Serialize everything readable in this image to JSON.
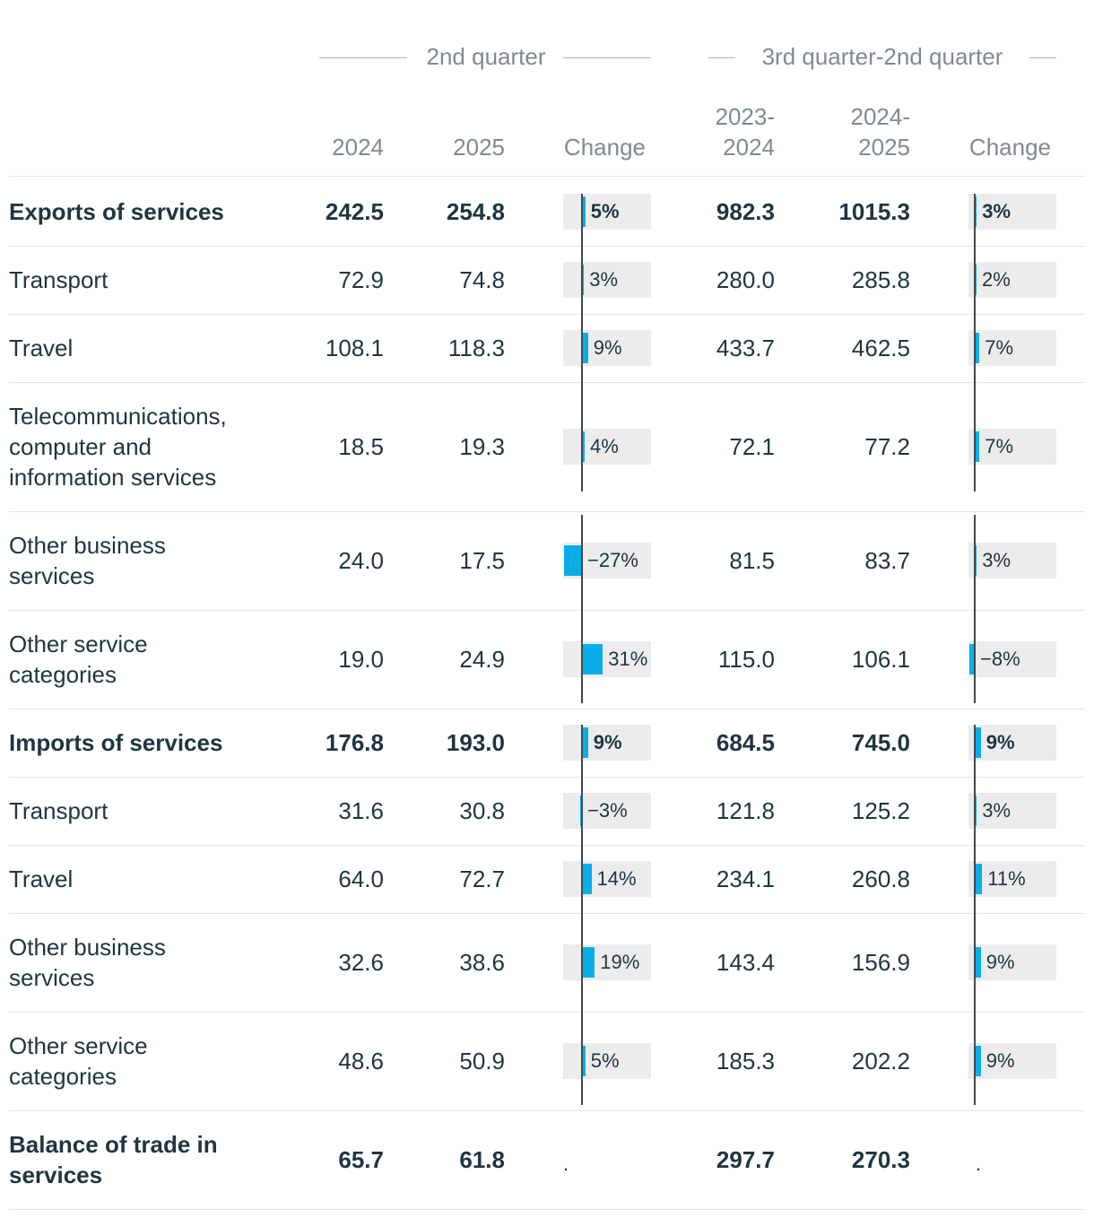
{
  "chart_data": {
    "type": "table",
    "groups": [
      "2nd quarter",
      "3rd quarter-2nd quarter"
    ],
    "columns": {
      "q2024": "2024",
      "q2025": "2025",
      "q_change": "Change",
      "p2324_line1": "2023-",
      "p2324_line2": "2024",
      "p2425_line1": "2024-",
      "p2425_line2": "2025",
      "p_change": "Change"
    },
    "rows": [
      {
        "label": "Exports of services",
        "bold": true,
        "q2024": "242.5",
        "q2025": "254.8",
        "q_change": 5,
        "q_change_text": "5%",
        "p2324": "982.3",
        "p2425": "1015.3",
        "p_change": 3,
        "p_change_text": "3%"
      },
      {
        "label": "Transport",
        "bold": false,
        "q2024": "72.9",
        "q2025": "74.8",
        "q_change": 3,
        "q_change_text": "3%",
        "p2324": "280.0",
        "p2425": "285.8",
        "p_change": 2,
        "p_change_text": "2%"
      },
      {
        "label": "Travel",
        "bold": false,
        "q2024": "108.1",
        "q2025": "118.3",
        "q_change": 9,
        "q_change_text": "9%",
        "p2324": "433.7",
        "p2425": "462.5",
        "p_change": 7,
        "p_change_text": "7%"
      },
      {
        "label": "Telecommunications, computer and information services",
        "bold": false,
        "q2024": "18.5",
        "q2025": "19.3",
        "q_change": 4,
        "q_change_text": "4%",
        "p2324": "72.1",
        "p2425": "77.2",
        "p_change": 7,
        "p_change_text": "7%"
      },
      {
        "label": "Other business services",
        "bold": false,
        "q2024": "24.0",
        "q2025": "17.5",
        "q_change": -27,
        "q_change_text": "−27%",
        "p2324": "81.5",
        "p2425": "83.7",
        "p_change": 3,
        "p_change_text": "3%"
      },
      {
        "label": "Other service categories",
        "bold": false,
        "q2024": "19.0",
        "q2025": "24.9",
        "q_change": 31,
        "q_change_text": "31%",
        "p2324": "115.0",
        "p2425": "106.1",
        "p_change": -8,
        "p_change_text": "−8%"
      },
      {
        "label": "Imports of services",
        "bold": true,
        "q2024": "176.8",
        "q2025": "193.0",
        "q_change": 9,
        "q_change_text": "9%",
        "p2324": "684.5",
        "p2425": "745.0",
        "p_change": 9,
        "p_change_text": "9%"
      },
      {
        "label": "Transport",
        "bold": false,
        "q2024": "31.6",
        "q2025": "30.8",
        "q_change": -3,
        "q_change_text": "−3%",
        "p2324": "121.8",
        "p2425": "125.2",
        "p_change": 3,
        "p_change_text": "3%"
      },
      {
        "label": "Travel",
        "bold": false,
        "q2024": "64.0",
        "q2025": "72.7",
        "q_change": 14,
        "q_change_text": "14%",
        "p2324": "234.1",
        "p2425": "260.8",
        "p_change": 11,
        "p_change_text": "11%"
      },
      {
        "label": "Other business services",
        "bold": false,
        "q2024": "32.6",
        "q2025": "38.6",
        "q_change": 19,
        "q_change_text": "19%",
        "p2324": "143.4",
        "p2425": "156.9",
        "p_change": 9,
        "p_change_text": "9%"
      },
      {
        "label": "Other service categories",
        "bold": false,
        "q2024": "48.6",
        "q2025": "50.9",
        "q_change": 5,
        "q_change_text": "5%",
        "p2324": "185.3",
        "p2425": "202.2",
        "p_change": 9,
        "p_change_text": "9%"
      },
      {
        "label": "Balance of trade in services",
        "bold": true,
        "q2024": "65.7",
        "q2025": "61.8",
        "q_change": null,
        "q_change_text": ".",
        "p2324": "297.7",
        "p2425": "270.3",
        "p_change": null,
        "p_change_text": "."
      }
    ],
    "colors": {
      "bar": "#0aaee6",
      "bar_bg": "#ececec",
      "axis": "#3d4a50",
      "text": "#1f3540",
      "muted": "#7e8b91"
    }
  }
}
